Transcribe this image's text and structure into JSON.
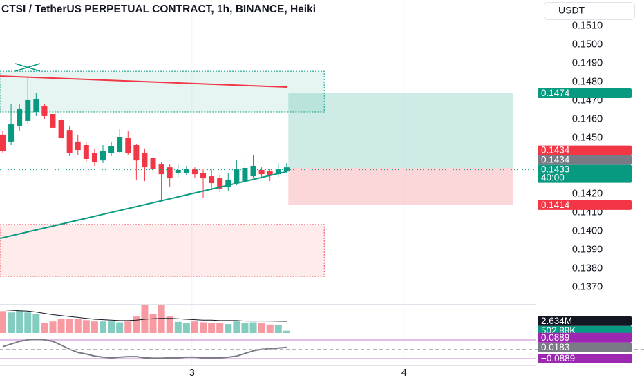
{
  "header": {
    "title": "CTSI / TetherUS PERPETUAL CONTRACT, 1h, BINANCE, Heiki",
    "currency": "USDT"
  },
  "chart_data": {
    "type": "candlestick",
    "ylim": [
      0.1361,
      0.1524
    ],
    "yticks": [
      {
        "value": 0.151,
        "label": "0.1510"
      },
      {
        "value": 0.15,
        "label": "0.1500"
      },
      {
        "value": 0.149,
        "label": "0.1490"
      },
      {
        "value": 0.148,
        "label": "0.1480"
      },
      {
        "value": 0.147,
        "label": "0.1470"
      },
      {
        "value": 0.146,
        "label": "0.1460"
      },
      {
        "value": 0.145,
        "label": "0.1450"
      },
      {
        "value": 0.142,
        "label": "0.1420"
      },
      {
        "value": 0.141,
        "label": "0.1410"
      },
      {
        "value": 0.14,
        "label": "0.1400"
      },
      {
        "value": 0.139,
        "label": "0.1390"
      },
      {
        "value": 0.138,
        "label": "0.1380"
      },
      {
        "value": 0.137,
        "label": "0.1370"
      }
    ],
    "xlim": [
      -0.33,
      63.8
    ],
    "xticks": [
      {
        "value": 22.66,
        "label": "3"
      },
      {
        "value": 48.06,
        "label": "4"
      }
    ],
    "colors": {
      "up": "#089981",
      "down": "#f23645"
    },
    "open": [
      0.14518,
      0.14481,
      0.14566,
      0.14592,
      0.1464,
      0.14673,
      0.14629,
      0.14599,
      0.14543,
      0.14481,
      0.14462,
      0.14418,
      0.1438,
      0.14418,
      0.14425,
      0.14499,
      0.14462,
      0.14418,
      0.14395,
      0.14358,
      0.14343,
      0.14314,
      0.14314,
      0.14332,
      0.14314,
      0.14295,
      0.14284,
      0.1424,
      0.14258,
      0.14269,
      0.14295,
      0.14329,
      0.14321,
      0.14306,
      0.14321
    ],
    "high": [
      0.14536,
      0.14684,
      0.14684,
      0.14825,
      0.1474,
      0.14684,
      0.14647,
      0.1461,
      0.14566,
      0.14518,
      0.14481,
      0.14444,
      0.14462,
      0.14481,
      0.14547,
      0.14536,
      0.14469,
      0.14444,
      0.14418,
      0.1437,
      0.14358,
      0.14358,
      0.14351,
      0.14343,
      0.14336,
      0.14332,
      0.14306,
      0.14314,
      0.1438,
      0.14395,
      0.14407,
      0.14343,
      0.14336,
      0.14366,
      0.14366
    ],
    "low": [
      0.14418,
      0.14462,
      0.14536,
      0.14573,
      0.14618,
      0.14603,
      0.14536,
      0.14481,
      0.14403,
      0.14407,
      0.14373,
      0.14351,
      0.14366,
      0.14403,
      0.14418,
      0.14407,
      0.14277,
      0.14269,
      0.14295,
      0.14158,
      0.1424,
      0.14291,
      0.14299,
      0.14284,
      0.1418,
      0.14221,
      0.1421,
      0.14217,
      0.14247,
      0.14258,
      0.14284,
      0.14284,
      0.14269,
      0.14291,
      0.14314
    ],
    "close": [
      0.14432,
      0.14573,
      0.14655,
      0.14703,
      0.1471,
      0.14618,
      0.14555,
      0.14499,
      0.14418,
      0.14436,
      0.14388,
      0.1437,
      0.14432,
      0.14455,
      0.14506,
      0.14418,
      0.1438,
      0.14344,
      0.14332,
      0.14306,
      0.14284,
      0.14329,
      0.14336,
      0.14306,
      0.14284,
      0.14258,
      0.14229,
      0.14277,
      0.14332,
      0.1434,
      0.14351,
      0.14306,
      0.14299,
      0.14332,
      0.14343
    ],
    "drawings": {
      "lines": [
        {
          "color": "#f23645",
          "x": [
            -0.33,
            34.1
          ],
          "y": [
            0.14832,
            0.14773
          ]
        },
        {
          "color": "#089981",
          "x": [
            -0.33,
            34.1
          ],
          "y": [
            0.13962,
            0.14321
          ]
        }
      ],
      "zones": [
        {
          "color": "#089981",
          "x": [
            -0.33,
            38.5
          ],
          "y": [
            0.14858,
            0.1464
          ]
        },
        {
          "color": "#f23645",
          "x": [
            -0.33,
            38.5
          ],
          "y": [
            0.14036,
            0.13758
          ]
        }
      ],
      "position": {
        "x": [
          34.2,
          61.1
        ],
        "target": 0.1474,
        "entry": 0.1434,
        "stop": 0.1414
      }
    },
    "price_tags": [
      {
        "value": 0.1474,
        "color": "#089981"
      },
      {
        "value": 0.1434,
        "color": "#f23645"
      },
      {
        "value": 0.1434,
        "color": "#787b86"
      },
      {
        "value": 0.1433,
        "countdown": "40:00",
        "color": "#089981"
      },
      {
        "value": 0.1414,
        "color": "#f23645"
      }
    ],
    "volume": {
      "ylim": [
        0,
        6500000
      ],
      "values": [
        4900000,
        4600000,
        5000000,
        4600000,
        4200000,
        2200000,
        2600000,
        3100000,
        3100000,
        3100000,
        2900000,
        2600000,
        2600000,
        2600000,
        2400000,
        2600000,
        3700000,
        6300000,
        4200000,
        6300000,
        3700000,
        2500000,
        2300000,
        2600000,
        2400000,
        2200000,
        2300000,
        2000000,
        2600000,
        2300000,
        2400000,
        2200000,
        1900000,
        1700000,
        502880
      ],
      "ma": [
        5200000,
        5100000,
        5000000,
        4900000,
        4700000,
        4400000,
        4100000,
        3900000,
        3700000,
        3500000,
        3300000,
        3100000,
        3000000,
        2900000,
        2800000,
        2800000,
        2900000,
        3100000,
        3200000,
        3300000,
        3300000,
        3200000,
        3100000,
        3000000,
        2900000,
        2900000,
        2800000,
        2800000,
        2800000,
        2700000,
        2700000,
        2700000,
        2700000,
        2650000,
        2634000
      ],
      "ma_color": "#131722",
      "tags": [
        {
          "value": 2634000,
          "label": "2.634M",
          "color": "#131722"
        },
        {
          "value": 502880,
          "label": "502.88K",
          "color": "#089981"
        }
      ]
    },
    "oscillator": {
      "ylim": [
        -0.148,
        0.1416
      ],
      "color": "#787b86",
      "band_color": "#9c27b0",
      "values": [
        0.025,
        0.05,
        0.075,
        0.09,
        0.095,
        0.09,
        0.075,
        0.04,
        0.0,
        -0.03,
        -0.045,
        -0.065,
        -0.075,
        -0.08,
        -0.075,
        -0.07,
        -0.07,
        -0.08,
        -0.085,
        -0.085,
        -0.08,
        -0.08,
        -0.075,
        -0.075,
        -0.08,
        -0.08,
        -0.08,
        -0.075,
        -0.065,
        -0.04,
        -0.015,
        0.0,
        0.005,
        0.012,
        0.0183
      ],
      "bands": [
        0.0889,
        -0.0889
      ],
      "tags": [
        {
          "value": 0.0889,
          "color": "#9c27b0"
        },
        {
          "value": 0.0183,
          "color": "#787b86"
        },
        {
          "value": -0.0889,
          "label": "−0.0889",
          "color": "#9c27b0"
        }
      ]
    }
  }
}
